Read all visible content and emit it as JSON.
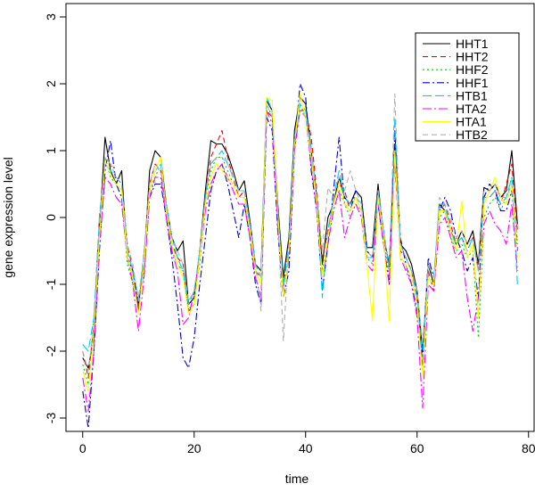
{
  "chart_data": {
    "type": "line",
    "title": "",
    "xlabel": "time",
    "ylabel": "gene expression level",
    "xlim": [
      -3,
      81
    ],
    "ylim": [
      -3.2,
      3.2
    ],
    "xticks": [
      0,
      20,
      40,
      60,
      80
    ],
    "yticks": [
      -3,
      -2,
      -1,
      0,
      1,
      2,
      3
    ],
    "grid": false,
    "legend_position": "top-right",
    "x": [
      0,
      1,
      2,
      3,
      4,
      5,
      6,
      7,
      8,
      9,
      10,
      11,
      12,
      13,
      14,
      15,
      16,
      17,
      18,
      19,
      20,
      21,
      22,
      23,
      24,
      25,
      26,
      27,
      28,
      29,
      30,
      31,
      32,
      33,
      34,
      35,
      36,
      37,
      38,
      39,
      40,
      41,
      42,
      43,
      44,
      45,
      46,
      47,
      48,
      49,
      50,
      51,
      52,
      53,
      54,
      55,
      56,
      57,
      58,
      59,
      60,
      61,
      62,
      63,
      64,
      65,
      66,
      67,
      68,
      69,
      70,
      71,
      72,
      73,
      74,
      75,
      76,
      77,
      78
    ],
    "series": [
      {
        "name": "HHT1",
        "color": "#000000",
        "dash": "",
        "values": [
          -2.1,
          -2.25,
          -1.8,
          -0.2,
          1.2,
          0.7,
          0.5,
          0.7,
          -0.6,
          -0.9,
          -1.4,
          -0.7,
          0.7,
          1.0,
          0.9,
          0.2,
          -0.3,
          -0.5,
          -0.35,
          -1.3,
          -1.2,
          -0.5,
          0.4,
          1.15,
          1.1,
          1.1,
          0.95,
          0.7,
          0.4,
          0.55,
          -0.05,
          -0.7,
          -0.8,
          1.75,
          1.6,
          0.2,
          -0.9,
          -0.3,
          1.3,
          1.8,
          1.7,
          1.0,
          0.3,
          -0.7,
          0.0,
          0.2,
          0.6,
          0.3,
          0.2,
          0.4,
          0.3,
          -0.45,
          -0.45,
          0.5,
          -0.3,
          -0.7,
          1.1,
          -0.4,
          -0.5,
          -0.7,
          -1.1,
          -2.0,
          -0.7,
          -1.0,
          0.2,
          0.1,
          -0.2,
          -0.4,
          -0.2,
          -0.4,
          -0.2,
          -0.7,
          0.45,
          0.4,
          0.5,
          0.3,
          0.4,
          1.0,
          -0.1
        ]
      },
      {
        "name": "HHT2",
        "color": "#ff0000",
        "dash": "6,4",
        "values": [
          -2.0,
          -2.4,
          -1.6,
          0.0,
          0.85,
          0.8,
          0.6,
          0.5,
          -0.4,
          -0.8,
          -1.35,
          -0.6,
          0.5,
          0.8,
          0.7,
          0.1,
          -0.4,
          -0.6,
          -0.7,
          -1.4,
          -1.3,
          -0.6,
          0.3,
          0.9,
          1.1,
          1.3,
          0.9,
          0.6,
          0.3,
          0.4,
          -0.1,
          -0.8,
          -0.9,
          1.6,
          1.5,
          0.0,
          -1.0,
          -0.5,
          1.1,
          1.6,
          1.6,
          1.2,
          0.4,
          -0.6,
          -0.2,
          0.2,
          0.5,
          0.4,
          0.1,
          0.3,
          0.1,
          -0.5,
          -0.6,
          0.4,
          -0.2,
          -0.8,
          0.8,
          -0.5,
          -0.6,
          -0.8,
          -1.2,
          -2.2,
          -0.8,
          -1.1,
          0.1,
          0.2,
          -0.1,
          -0.4,
          -0.3,
          -0.5,
          -0.3,
          -0.8,
          0.3,
          0.3,
          0.4,
          0.2,
          0.5,
          0.8,
          -0.2
        ]
      },
      {
        "name": "HHF2",
        "color": "#00cc00",
        "dash": "2,3",
        "values": [
          -2.2,
          -2.5,
          -1.5,
          -0.3,
          0.9,
          0.6,
          0.5,
          0.4,
          -0.7,
          -1.0,
          -1.3,
          -0.7,
          0.4,
          0.6,
          0.8,
          0.2,
          -0.5,
          -0.7,
          -0.8,
          -1.4,
          -1.2,
          -0.7,
          0.2,
          0.7,
          0.9,
          0.9,
          0.7,
          0.5,
          0.3,
          0.3,
          -0.2,
          -0.8,
          -1.0,
          1.7,
          1.5,
          0.1,
          -1.1,
          -0.6,
          1.0,
          1.7,
          1.5,
          0.9,
          0.2,
          -0.8,
          -0.3,
          0.1,
          0.4,
          0.2,
          0.0,
          0.2,
          0.1,
          -0.6,
          -0.7,
          0.3,
          -0.3,
          -0.9,
          0.9,
          -0.6,
          -0.7,
          -0.9,
          -1.3,
          -2.3,
          -0.9,
          -1.0,
          0.0,
          0.1,
          -0.3,
          -0.5,
          -0.4,
          -0.6,
          -0.5,
          -1.8,
          0.0,
          0.2,
          0.3,
          0.1,
          0.3,
          0.6,
          -0.4
        ]
      },
      {
        "name": "HHF1",
        "color": "#0000cc",
        "dash": "8,3,2,3",
        "values": [
          -2.6,
          -3.15,
          -2.0,
          -0.5,
          0.7,
          1.15,
          0.5,
          0.3,
          -0.6,
          -0.8,
          -1.3,
          -0.8,
          0.3,
          0.5,
          0.5,
          0.0,
          -0.6,
          -1.3,
          -2.1,
          -2.25,
          -1.8,
          -1.0,
          -0.3,
          0.4,
          0.7,
          0.8,
          0.5,
          0.1,
          -0.3,
          0.2,
          -0.3,
          -1.0,
          -1.3,
          1.5,
          1.3,
          -0.2,
          -1.2,
          -0.8,
          1.0,
          2.0,
          1.8,
          0.7,
          0.1,
          -1.1,
          -0.4,
          0.4,
          1.2,
          0.2,
          0.1,
          0.4,
          0.3,
          -0.5,
          -0.6,
          0.2,
          -0.4,
          -1.0,
          1.3,
          -0.3,
          -0.7,
          -1.0,
          -1.4,
          -2.1,
          -0.6,
          -0.9,
          0.1,
          0.3,
          0.1,
          -0.3,
          -0.5,
          -0.8,
          -0.6,
          -1.2,
          0.3,
          0.5,
          0.4,
          0.1,
          0.1,
          0.4,
          -0.5
        ]
      },
      {
        "name": "HTB1",
        "color": "#00ccff",
        "dash": "10,4",
        "values": [
          -1.9,
          -2.0,
          -1.5,
          0.0,
          0.8,
          0.7,
          0.6,
          0.5,
          -0.5,
          -0.8,
          -1.2,
          -0.6,
          0.4,
          0.7,
          0.8,
          0.2,
          -0.3,
          -0.6,
          -0.8,
          -1.3,
          -1.1,
          -0.5,
          0.3,
          0.8,
          0.9,
          1.0,
          0.8,
          0.6,
          0.4,
          0.4,
          -0.1,
          -0.7,
          -0.9,
          1.8,
          1.6,
          0.1,
          -1.0,
          -0.4,
          1.2,
          1.7,
          1.6,
          1.0,
          0.3,
          -1.2,
          -0.2,
          0.3,
          0.7,
          0.3,
          0.2,
          0.3,
          0.2,
          -0.6,
          -0.6,
          0.4,
          -0.2,
          -0.8,
          1.5,
          -0.4,
          -0.6,
          -0.8,
          -1.2,
          -2.1,
          -0.7,
          -0.9,
          0.2,
          0.2,
          -0.2,
          -0.4,
          -0.3,
          -0.5,
          -0.3,
          -0.8,
          0.3,
          0.3,
          0.4,
          0.2,
          0.3,
          0.6,
          -1.0
        ]
      },
      {
        "name": "HTA2",
        "color": "#ff00ff",
        "dash": "10,3,2,3",
        "values": [
          -2.4,
          -2.9,
          -2.0,
          -0.4,
          0.6,
          0.5,
          0.3,
          0.2,
          -0.6,
          -1.0,
          -1.7,
          -0.9,
          0.3,
          0.6,
          0.6,
          0.0,
          -0.5,
          -0.8,
          -1.6,
          -1.5,
          -1.1,
          -0.6,
          0.1,
          0.5,
          0.7,
          0.8,
          0.6,
          0.4,
          0.2,
          0.2,
          -0.3,
          -0.9,
          -1.2,
          1.6,
          1.4,
          -0.1,
          -1.1,
          -0.6,
          1.0,
          1.6,
          1.5,
          0.8,
          0.1,
          -0.9,
          -0.4,
          0.1,
          0.4,
          -0.3,
          0.0,
          0.2,
          0.0,
          -0.7,
          -0.8,
          0.2,
          -0.4,
          -1.0,
          1.0,
          -0.6,
          -0.8,
          -1.0,
          -1.5,
          -2.85,
          -1.0,
          -1.1,
          -0.1,
          0.0,
          -0.3,
          -0.6,
          -0.5,
          -1.2,
          -1.7,
          -1.2,
          -0.1,
          0.1,
          -0.1,
          -0.2,
          -0.4,
          0.2,
          -0.8
        ]
      },
      {
        "name": "HTA1",
        "color": "#ffff00",
        "dash": "",
        "values": [
          -2.3,
          -2.6,
          -1.7,
          -0.3,
          0.85,
          0.65,
          0.5,
          0.4,
          -0.6,
          -0.9,
          -1.45,
          -0.7,
          0.4,
          0.7,
          0.9,
          0.1,
          -0.4,
          -0.7,
          -0.9,
          -1.45,
          -1.3,
          -0.6,
          0.2,
          0.6,
          0.8,
          0.7,
          0.6,
          0.5,
          0.3,
          0.3,
          -0.2,
          -0.8,
          -1.0,
          1.8,
          1.75,
          0.1,
          -1.2,
          -0.5,
          1.1,
          1.85,
          1.5,
          0.9,
          0.2,
          -0.9,
          -0.3,
          0.2,
          0.5,
          0.2,
          0.1,
          0.3,
          0.1,
          -0.7,
          -1.55,
          0.3,
          -0.3,
          -1.55,
          1.0,
          -0.6,
          -0.7,
          -0.9,
          -1.3,
          -2.4,
          -0.9,
          -1.0,
          0.1,
          0.1,
          -0.2,
          -0.5,
          0.25,
          -0.6,
          -0.4,
          -1.5,
          0.2,
          0.4,
          0.6,
          0.3,
          0.2,
          0.5,
          -0.6
        ]
      },
      {
        "name": "HTB2",
        "color": "#b0b0b0",
        "dash": "6,4",
        "values": [
          -2.0,
          -2.3,
          -1.6,
          -0.1,
          0.9,
          0.8,
          0.6,
          0.5,
          -0.4,
          -0.7,
          -1.25,
          -0.5,
          0.5,
          0.8,
          0.7,
          0.2,
          -0.3,
          -0.5,
          -0.7,
          -1.25,
          -1.1,
          -0.5,
          0.3,
          0.8,
          0.9,
          0.9,
          0.8,
          0.6,
          0.4,
          0.4,
          -0.1,
          -0.7,
          -1.4,
          1.7,
          1.5,
          0.0,
          -1.85,
          -0.4,
          1.1,
          1.6,
          1.5,
          1.0,
          0.3,
          -0.5,
          0.45,
          0.3,
          0.6,
          0.4,
          0.7,
          0.4,
          0.2,
          -0.5,
          -0.6,
          0.4,
          -0.2,
          -0.8,
          1.85,
          -0.4,
          -0.6,
          -0.8,
          -1.1,
          -1.9,
          -0.7,
          -0.9,
          0.3,
          0.2,
          0.0,
          -0.3,
          -0.2,
          -0.4,
          -0.3,
          -0.8,
          0.4,
          0.4,
          0.5,
          0.3,
          0.3,
          0.5,
          -0.3
        ]
      }
    ]
  }
}
